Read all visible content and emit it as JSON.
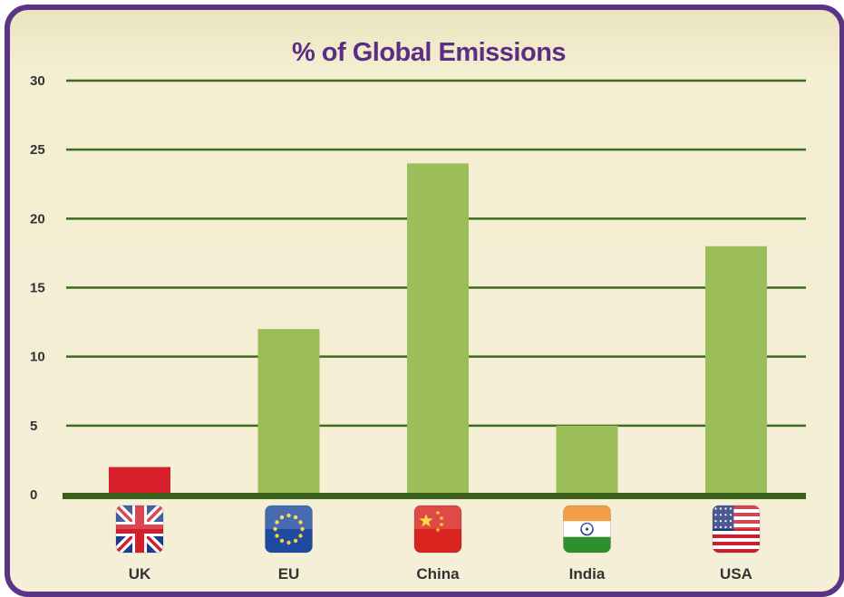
{
  "chart_data": {
    "type": "bar",
    "title": "% of Global Emissions",
    "xlabel": "",
    "ylabel": "",
    "categories": [
      "UK",
      "EU",
      "China",
      "India",
      "USA"
    ],
    "values": [
      2,
      12,
      24,
      5,
      18
    ],
    "ylim": [
      0,
      30
    ],
    "yticks": [
      "0",
      "5",
      "10",
      "15",
      "20",
      "25",
      "30"
    ],
    "grid": true,
    "legend": "none",
    "flag_icons": [
      "uk-flag-icon",
      "eu-flag-icon",
      "china-flag-icon",
      "india-flag-icon",
      "usa-flag-icon"
    ],
    "colors": {
      "bar": "#9bbd5a",
      "highlight_bar": "#d71f2b",
      "gridline": "#3f6b1c",
      "baseline": "#386018",
      "frame": "#5b3486",
      "title": "#5b2d83"
    },
    "highlight_index": 0
  }
}
